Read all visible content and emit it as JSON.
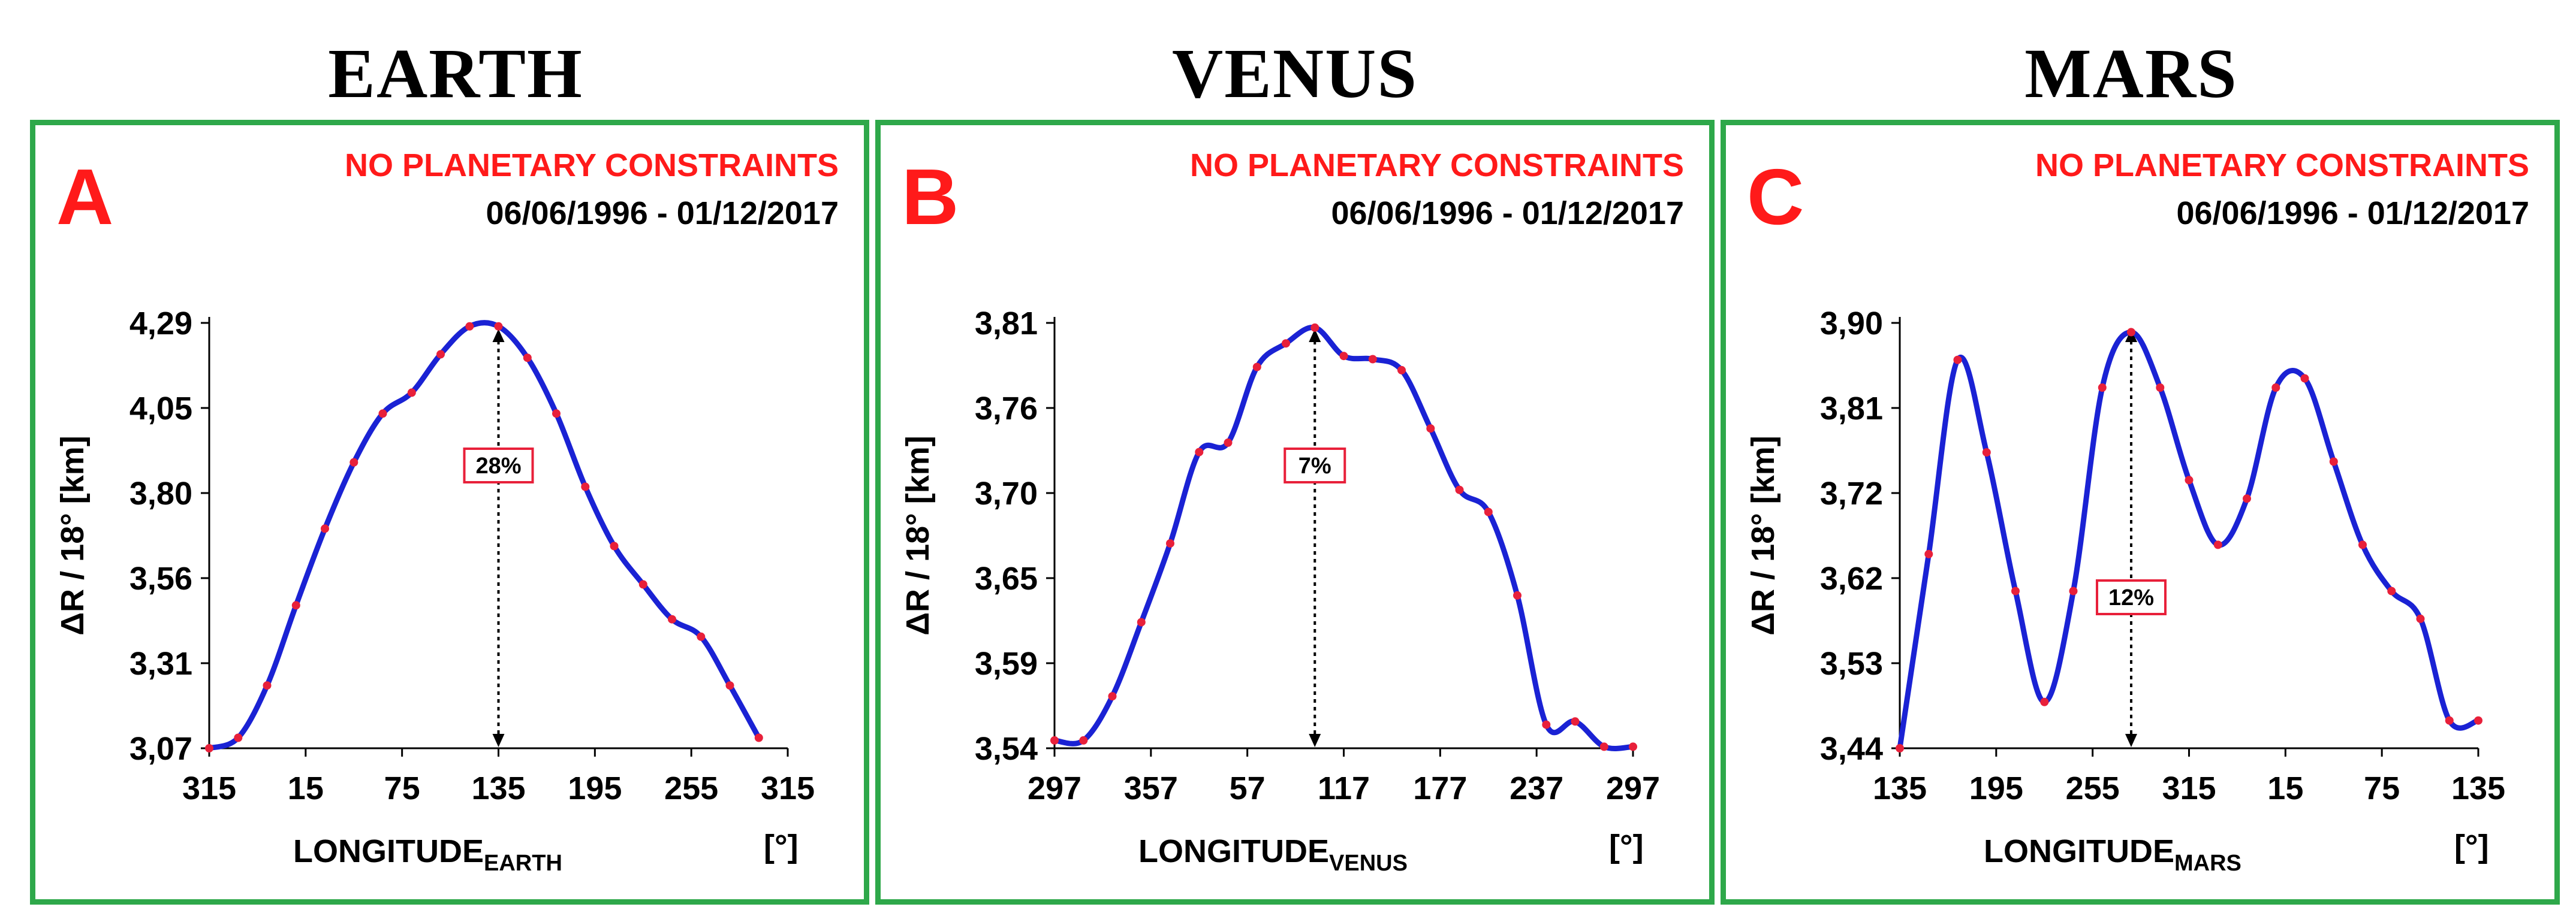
{
  "chart_data": [
    {
      "type": "line",
      "planet": "EARTH",
      "letter": "A",
      "constraint": "NO PLANETARY CONSTRAINTS",
      "period": "06/06/1996 - 01/12/2017",
      "ylabel": "ΔR / 18°  [km]",
      "xlabel_main": "LONGITUDE",
      "xlabel_sub": "EARTH",
      "xunit": "[°]",
      "yticks": [
        "3,07",
        "3,31",
        "3,56",
        "3,80",
        "4,05",
        "4,29"
      ],
      "ylim": [
        3.07,
        4.29
      ],
      "xticks": [
        "315",
        "15",
        "75",
        "135",
        "195",
        "255",
        "315"
      ],
      "x": [
        0,
        18,
        36,
        54,
        72,
        90,
        108,
        126,
        144,
        162,
        180,
        198,
        216,
        234,
        252,
        270,
        288,
        306,
        324,
        342
      ],
      "values": [
        3.07,
        3.1,
        3.25,
        3.48,
        3.7,
        3.89,
        4.03,
        4.09,
        4.2,
        4.28,
        4.28,
        4.19,
        4.03,
        3.82,
        3.65,
        3.54,
        3.44,
        3.39,
        3.25,
        3.1
      ],
      "arrow_x": 180,
      "annotation": "28%",
      "line_color": "#1a22d4",
      "marker_color": "#e8203a"
    },
    {
      "type": "line",
      "planet": "VENUS",
      "letter": "B",
      "constraint": "NO PLANETARY CONSTRAINTS",
      "period": "06/06/1996 - 01/12/2017",
      "ylabel": "ΔR / 18°  [km]",
      "xlabel_main": "LONGITUDE",
      "xlabel_sub": "VENUS",
      "xunit": "[°]",
      "yticks": [
        "3,54",
        "3,59",
        "3,65",
        "3,70",
        "3,76",
        "3,81"
      ],
      "ylim": [
        3.54,
        3.81
      ],
      "xticks": [
        "297",
        "357",
        "57",
        "117",
        "177",
        "237",
        "297"
      ],
      "x": [
        0,
        18,
        36,
        54,
        72,
        90,
        108,
        126,
        144,
        162,
        180,
        198,
        216,
        234,
        252,
        270,
        288,
        306,
        324,
        342,
        360
      ],
      "values": [
        3.545,
        3.545,
        3.573,
        3.62,
        3.67,
        3.728,
        3.734,
        3.782,
        3.797,
        3.807,
        3.789,
        3.787,
        3.78,
        3.743,
        3.704,
        3.69,
        3.637,
        3.555,
        3.557,
        3.541,
        3.541
      ],
      "arrow_x": 162,
      "annotation": "7%",
      "line_color": "#1a22d4",
      "marker_color": "#e8203a"
    },
    {
      "type": "line",
      "planet": "MARS",
      "letter": "C",
      "constraint": "NO PLANETARY CONSTRAINTS",
      "period": "06/06/1996 - 01/12/2017",
      "ylabel": "ΔR / 18°  [km]",
      "xlabel_main": "LONGITUDE",
      "xlabel_sub": "MARS",
      "xunit": "[°]",
      "yticks": [
        "3,44",
        "3,53",
        "3,62",
        "3,72",
        "3,81",
        "3,90"
      ],
      "ylim": [
        3.44,
        3.9
      ],
      "xticks": [
        "135",
        "195",
        "255",
        "315",
        "15",
        "75",
        "135"
      ],
      "x": [
        0,
        18,
        36,
        54,
        72,
        90,
        108,
        126,
        144,
        162,
        180,
        198,
        216,
        234,
        252,
        270,
        288,
        306,
        324,
        342,
        360
      ],
      "values": [
        3.44,
        3.65,
        3.86,
        3.76,
        3.61,
        3.49,
        3.61,
        3.83,
        3.89,
        3.83,
        3.73,
        3.66,
        3.71,
        3.83,
        3.84,
        3.75,
        3.66,
        3.61,
        3.58,
        3.47,
        3.47
      ],
      "arrow_x": 144,
      "annotation": "12%",
      "line_color": "#1a22d4",
      "marker_color": "#e8203a"
    }
  ]
}
